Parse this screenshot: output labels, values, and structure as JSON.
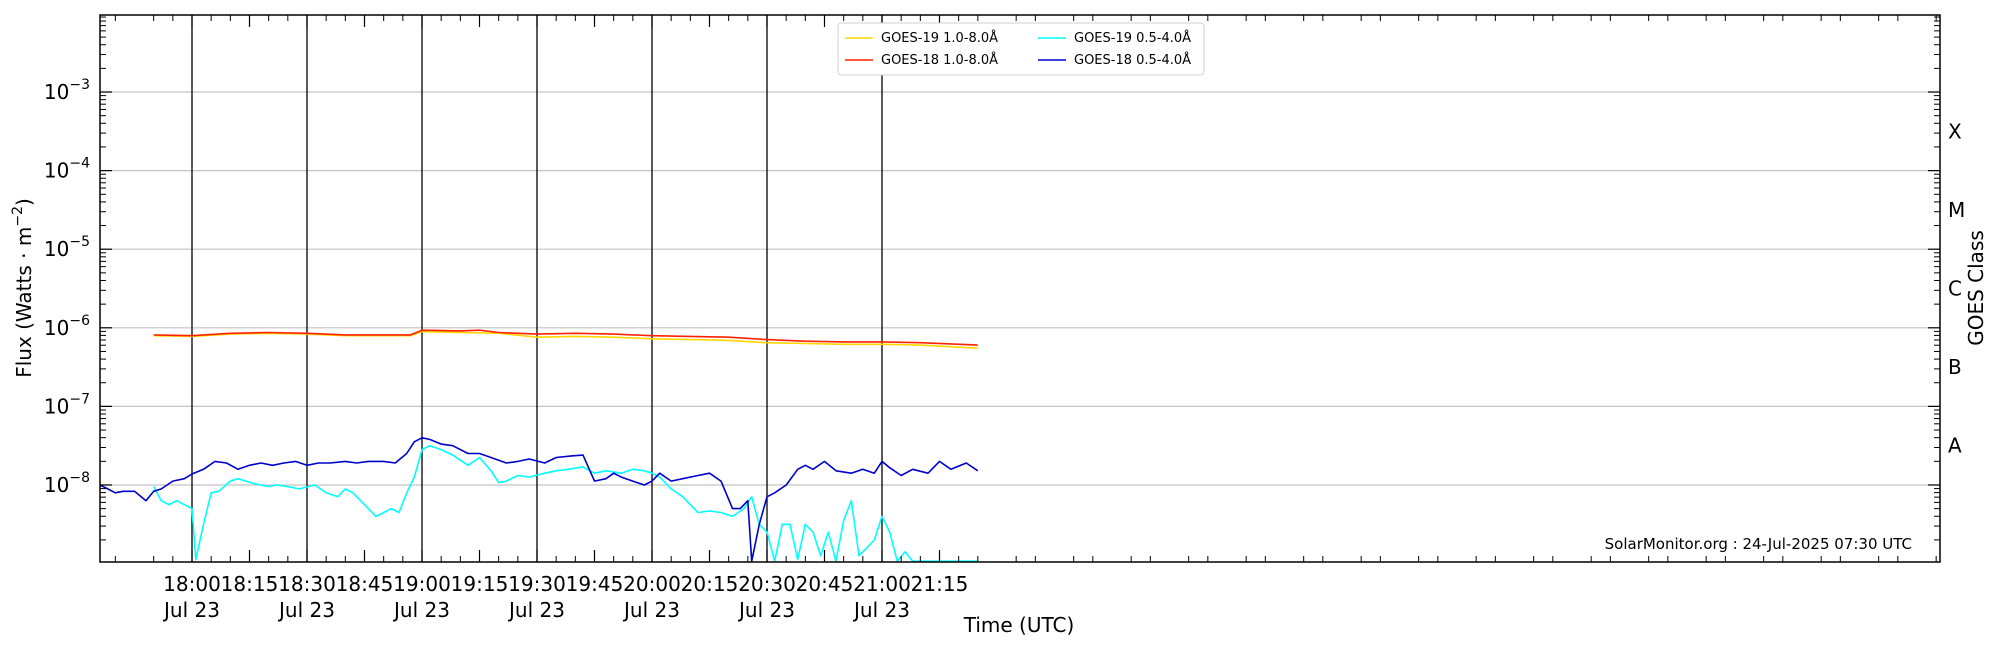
{
  "chart_data": {
    "type": "line",
    "xlabel": "Time (UTC)",
    "ylabel_main": "Flux (Watts · m",
    "ylabel_sup": "−2",
    "ylabel_close": ")",
    "ylabel_right": "GOES Class",
    "x_range_minutes": [
      -24,
      456
    ],
    "y_log_range": [
      -8.98,
      -2.02
    ],
    "y_ticks": [
      {
        "exp": -3,
        "base": "10",
        "sup": "−3"
      },
      {
        "exp": -4,
        "base": "10",
        "sup": "−4"
      },
      {
        "exp": -5,
        "base": "10",
        "sup": "−5"
      },
      {
        "exp": -6,
        "base": "10",
        "sup": "−6"
      },
      {
        "exp": -7,
        "base": "10",
        "sup": "−7"
      },
      {
        "exp": -8,
        "base": "10",
        "sup": "−8"
      }
    ],
    "x_ticks": [
      {
        "t": 0,
        "time": "18:00",
        "date": "Jul 23"
      },
      {
        "t": 15,
        "time": "18:15",
        "date": ""
      },
      {
        "t": 30,
        "time": "18:30",
        "date": "Jul 23"
      },
      {
        "t": 45,
        "time": "18:45",
        "date": ""
      },
      {
        "t": 60,
        "time": "19:00",
        "date": "Jul 23"
      },
      {
        "t": 75,
        "time": "19:15",
        "date": ""
      },
      {
        "t": 90,
        "time": "19:30",
        "date": "Jul 23"
      },
      {
        "t": 105,
        "time": "19:45",
        "date": ""
      },
      {
        "t": 120,
        "time": "20:00",
        "date": "Jul 23"
      },
      {
        "t": 135,
        "time": "20:15",
        "date": ""
      },
      {
        "t": 150,
        "time": "20:30",
        "date": "Jul 23"
      },
      {
        "t": 165,
        "time": "20:45",
        "date": ""
      },
      {
        "t": 180,
        "time": "21:00",
        "date": "Jul 23"
      },
      {
        "t": 195,
        "time": "21:15",
        "date": ""
      }
    ],
    "vertical_lines_t": [
      0,
      30,
      60,
      90,
      120,
      150,
      180
    ],
    "goes_classes": [
      {
        "label": "X",
        "exp": -3.5
      },
      {
        "label": "M",
        "exp": -4.5
      },
      {
        "label": "C",
        "exp": -5.5
      },
      {
        "label": "B",
        "exp": -6.5
      },
      {
        "label": "A",
        "exp": -7.5
      }
    ],
    "legend": [
      {
        "name": "GOES-19 1.0-8.0Å",
        "color": "#ffd700"
      },
      {
        "name": "GOES-19 0.5-4.0Å",
        "color": "#00ffff"
      },
      {
        "name": "GOES-18 1.0-8.0Å",
        "color": "#ff2200"
      },
      {
        "name": "GOES-18 0.5-4.0Å",
        "color": "#0000cc"
      }
    ],
    "credit": "SolarMonitor.org : 24-Jul-2025 07:30 UTC",
    "series": [
      {
        "name": "GOES-19 1.0-8.0Å",
        "color": "#ffd700",
        "x": [
          -10,
          0,
          10,
          20,
          30,
          40,
          50,
          57,
          60,
          70,
          80,
          90,
          100,
          110,
          120,
          130,
          140,
          150,
          160,
          170,
          180,
          190,
          205
        ],
        "log_y": [
          -6.1,
          -6.11,
          -6.08,
          -6.07,
          -6.08,
          -6.1,
          -6.1,
          -6.1,
          -6.05,
          -6.06,
          -6.07,
          -6.12,
          -6.11,
          -6.12,
          -6.14,
          -6.15,
          -6.16,
          -6.19,
          -6.2,
          -6.21,
          -6.21,
          -6.22,
          -6.26
        ]
      },
      {
        "name": "GOES-18 1.0-8.0Å",
        "color": "#ff2200",
        "x": [
          -10,
          0,
          10,
          20,
          30,
          40,
          50,
          57,
          60,
          70,
          75,
          80,
          90,
          100,
          110,
          120,
          130,
          140,
          150,
          160,
          170,
          180,
          190,
          205
        ],
        "log_y": [
          -6.09,
          -6.1,
          -6.07,
          -6.06,
          -6.07,
          -6.09,
          -6.09,
          -6.09,
          -6.03,
          -6.04,
          -6.03,
          -6.06,
          -6.08,
          -6.07,
          -6.08,
          -6.1,
          -6.11,
          -6.12,
          -6.15,
          -6.17,
          -6.18,
          -6.18,
          -6.19,
          -6.22
        ]
      },
      {
        "name": "GOES-19 0.5-4.0Å",
        "color": "#00ffff",
        "x": [
          -10,
          -8,
          -6,
          -4,
          -2,
          0,
          1,
          3,
          5,
          7,
          10,
          12,
          14,
          16,
          18,
          20,
          22,
          25,
          28,
          32,
          35,
          38,
          40,
          42,
          44,
          46,
          48,
          50,
          52,
          54,
          56,
          58,
          60,
          62,
          65,
          68,
          72,
          75,
          78,
          80,
          82,
          85,
          88,
          92,
          95,
          98,
          102,
          105,
          108,
          112,
          115,
          118,
          120,
          122,
          125,
          128,
          132,
          135,
          138,
          141,
          144,
          146,
          148,
          150,
          152,
          154,
          156,
          158,
          160,
          162,
          164,
          166,
          168,
          170,
          172,
          174,
          176,
          178,
          180,
          182,
          184,
          186,
          188,
          190,
          195,
          200,
          205
        ],
        "log_y": [
          -8.02,
          -8.2,
          -8.25,
          -8.2,
          -8.25,
          -8.3,
          -8.95,
          -8.5,
          -8.1,
          -8.08,
          -7.95,
          -7.92,
          -7.95,
          -7.98,
          -8.0,
          -8.02,
          -8.0,
          -8.02,
          -8.05,
          -8.0,
          -8.1,
          -8.15,
          -8.05,
          -8.1,
          -8.2,
          -8.3,
          -8.4,
          -8.35,
          -8.3,
          -8.35,
          -8.1,
          -7.9,
          -7.55,
          -7.5,
          -7.55,
          -7.62,
          -7.75,
          -7.65,
          -7.82,
          -7.97,
          -7.95,
          -7.88,
          -7.9,
          -7.85,
          -7.82,
          -7.8,
          -7.77,
          -7.85,
          -7.82,
          -7.85,
          -7.8,
          -7.82,
          -7.85,
          -7.9,
          -8.05,
          -8.15,
          -8.35,
          -8.33,
          -8.35,
          -8.4,
          -8.3,
          -8.15,
          -8.5,
          -8.6,
          -8.97,
          -8.5,
          -8.5,
          -8.95,
          -8.5,
          -8.6,
          -8.9,
          -8.6,
          -8.97,
          -8.45,
          -8.2,
          -8.9,
          -8.8,
          -8.7,
          -8.4,
          -8.6,
          -8.97,
          -8.85,
          -8.97,
          -8.97,
          -8.97,
          -8.97,
          -8.97
        ]
      },
      {
        "name": "GOES-18 0.5-4.0Å",
        "color": "#0000cc",
        "x": [
          -24,
          -22,
          -20,
          -18,
          -15,
          -12,
          -10,
          -8,
          -5,
          -2,
          0,
          3,
          6,
          9,
          12,
          15,
          18,
          21,
          24,
          27,
          30,
          33,
          36,
          40,
          43,
          46,
          50,
          53,
          56,
          58,
          60,
          62,
          65,
          68,
          72,
          75,
          78,
          82,
          85,
          88,
          92,
          95,
          99,
          102,
          105,
          108,
          110,
          112,
          115,
          118,
          120,
          122,
          125,
          128,
          132,
          135,
          138,
          141,
          143,
          145,
          146,
          148,
          150,
          152,
          155,
          158,
          160,
          162,
          165,
          168,
          172,
          175,
          178,
          180,
          182,
          185,
          188,
          192,
          195,
          198,
          202,
          205
        ],
        "log_y": [
          -8.0,
          -8.05,
          -8.1,
          -8.08,
          -8.08,
          -8.2,
          -8.08,
          -8.05,
          -7.95,
          -7.92,
          -7.86,
          -7.8,
          -7.7,
          -7.72,
          -7.8,
          -7.75,
          -7.72,
          -7.75,
          -7.72,
          -7.7,
          -7.75,
          -7.72,
          -7.72,
          -7.7,
          -7.72,
          -7.7,
          -7.7,
          -7.72,
          -7.6,
          -7.45,
          -7.4,
          -7.42,
          -7.48,
          -7.5,
          -7.6,
          -7.6,
          -7.65,
          -7.72,
          -7.7,
          -7.67,
          -7.72,
          -7.65,
          -7.63,
          -7.62,
          -7.95,
          -7.92,
          -7.85,
          -7.9,
          -7.95,
          -8.0,
          -7.95,
          -7.85,
          -7.95,
          -7.92,
          -7.88,
          -7.85,
          -7.95,
          -8.3,
          -8.3,
          -8.2,
          -8.97,
          -8.5,
          -8.15,
          -8.1,
          -8.0,
          -7.8,
          -7.75,
          -7.8,
          -7.7,
          -7.82,
          -7.85,
          -7.8,
          -7.85,
          -7.7,
          -7.78,
          -7.88,
          -7.8,
          -7.85,
          -7.7,
          -7.8,
          -7.72,
          -7.82
        ]
      }
    ]
  }
}
